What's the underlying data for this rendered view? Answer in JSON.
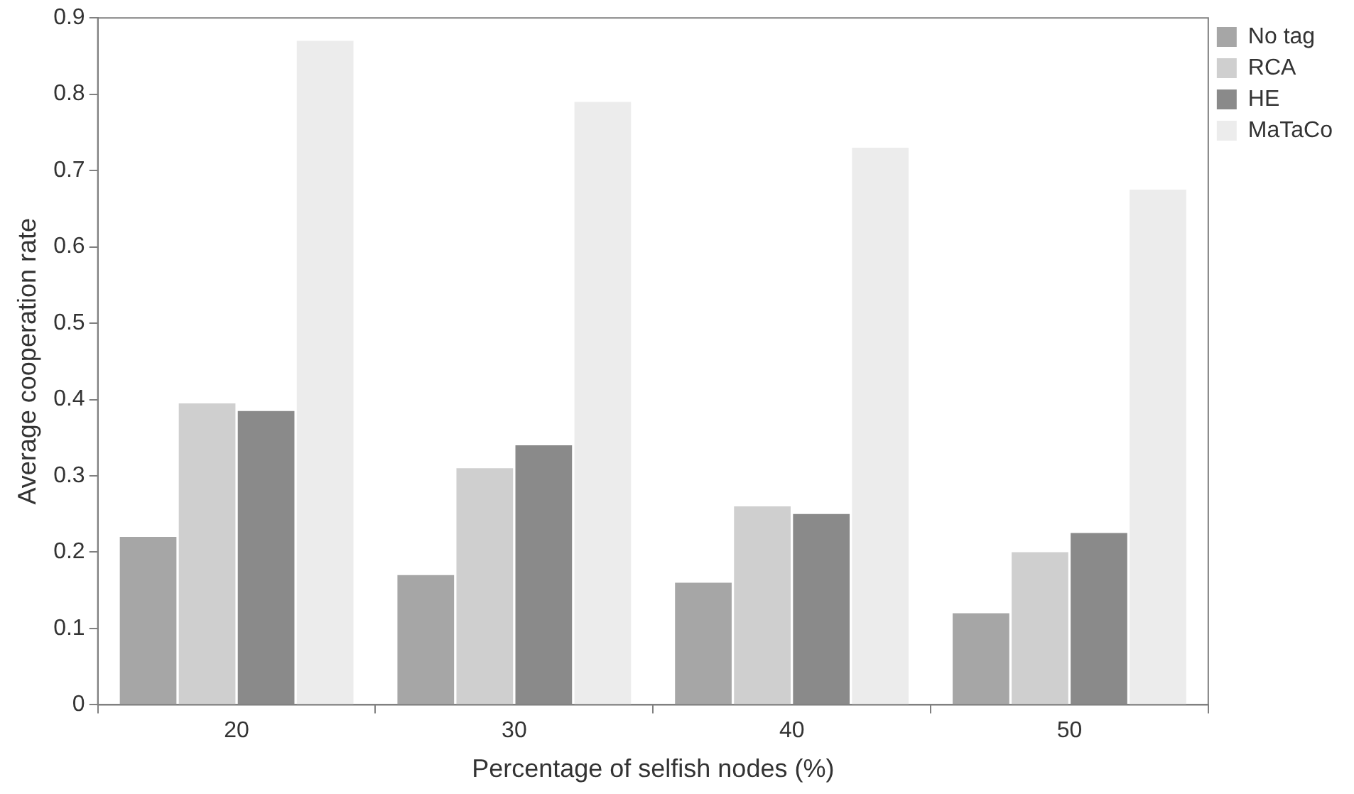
{
  "chart_data": {
    "type": "bar",
    "xlabel": "Percentage of selfish nodes (%)",
    "ylabel": "Average cooperation rate",
    "categories": [
      "20",
      "30",
      "40",
      "50"
    ],
    "series": [
      {
        "name": "No tag",
        "color": "#a6a6a6",
        "values": [
          0.22,
          0.17,
          0.16,
          0.12
        ]
      },
      {
        "name": "RCA",
        "color": "#cfcfcf",
        "values": [
          0.395,
          0.31,
          0.26,
          0.2
        ]
      },
      {
        "name": "HE",
        "color": "#8a8a8a",
        "values": [
          0.385,
          0.34,
          0.25,
          0.225
        ]
      },
      {
        "name": "MaTaCo",
        "color": "#ececec",
        "values": [
          0.87,
          0.79,
          0.73,
          0.675
        ]
      }
    ],
    "ylim": [
      0,
      0.9
    ],
    "yticks": [
      0,
      0.1,
      0.2,
      0.3,
      0.4,
      0.5,
      0.6,
      0.7,
      0.8,
      0.9
    ],
    "grid": false,
    "legend": "top right"
  }
}
